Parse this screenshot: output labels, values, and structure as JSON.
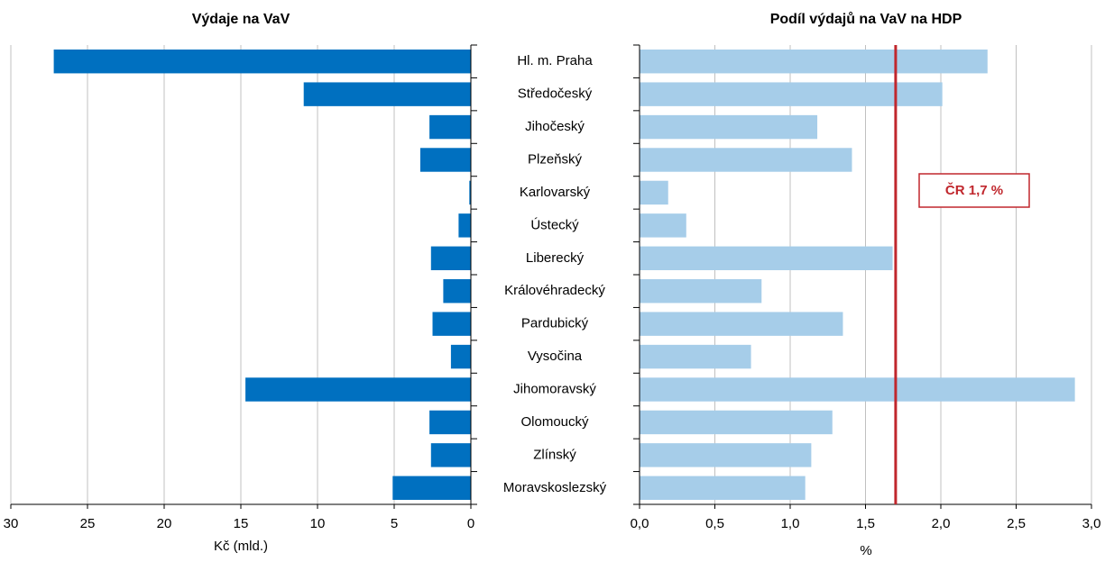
{
  "chart_data": [
    {
      "type": "hbar",
      "title": "Výdaje na VaV",
      "x_label": "Kč (mld.)",
      "categories": [
        "Hl. m. Praha",
        "Středočeský",
        "Jihočeský",
        "Plzeňský",
        "Karlovarský",
        "Ústecký",
        "Liberecký",
        "Královéhradecký",
        "Pardubický",
        "Vysočina",
        "Jihomoravský",
        "Olomoucký",
        "Zlínský",
        "Moravskoslezský"
      ],
      "values": [
        27.2,
        10.9,
        2.7,
        3.3,
        0.1,
        0.8,
        2.6,
        1.8,
        2.5,
        1.3,
        14.7,
        2.7,
        2.6,
        5.1
      ],
      "color": "#0070c0",
      "xlim": [
        30,
        0
      ],
      "xticks": [
        30,
        25,
        20,
        15,
        10,
        5,
        0
      ],
      "grid": true
    },
    {
      "type": "hbar",
      "title": "Podíl výdajů na VaV na HDP",
      "x_label": "%",
      "values": [
        2.31,
        2.01,
        1.18,
        1.41,
        0.19,
        0.31,
        1.68,
        0.81,
        1.35,
        0.74,
        2.89,
        1.28,
        1.14,
        1.1
      ],
      "color": "#a6cde9",
      "xlim": [
        0,
        3
      ],
      "xticks": [
        {
          "value": 0,
          "label": "0,0"
        },
        {
          "value": 0.5,
          "label": "0,5"
        },
        {
          "value": 1,
          "label": "1,0"
        },
        {
          "value": 1.5,
          "label": "1,5"
        },
        {
          "value": 2,
          "label": "2,0"
        },
        {
          "value": 2.5,
          "label": "2,5"
        },
        {
          "value": 3,
          "label": "3,0"
        }
      ],
      "grid": true,
      "reference_line": {
        "value": 1.7,
        "label": "ČR 1,7 %",
        "color": "#c0272d"
      }
    }
  ]
}
